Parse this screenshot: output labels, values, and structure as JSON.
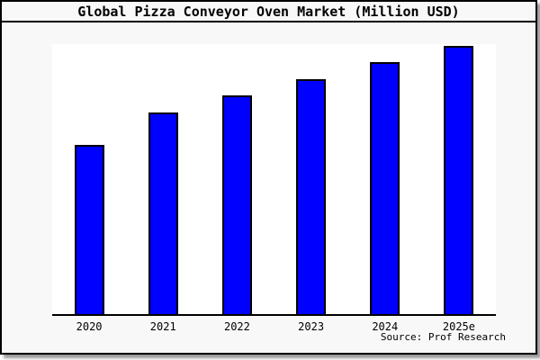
{
  "chart_data": {
    "type": "bar",
    "title": "Global Pizza Conveyor Oven Market (Million USD)",
    "categories": [
      "2020",
      "2021",
      "2022",
      "2023",
      "2024",
      "2025e"
    ],
    "values": [
      63,
      75.3,
      81.7,
      87.7,
      94,
      100
    ],
    "note": "no y-axis ticks or value labels are shown in the chart; values are relative bar heights normalized to max = 100",
    "xlabel": "",
    "ylabel": "",
    "ylim": [
      0,
      100.7
    ],
    "grid": false,
    "legend": null,
    "bar_color": "#0000ff",
    "bar_border_color": "#000000",
    "plot_background": "#ffffff",
    "page_background": "#f8f8f8",
    "frame_border_color": "#000000",
    "source": "Source: Prof Research"
  }
}
